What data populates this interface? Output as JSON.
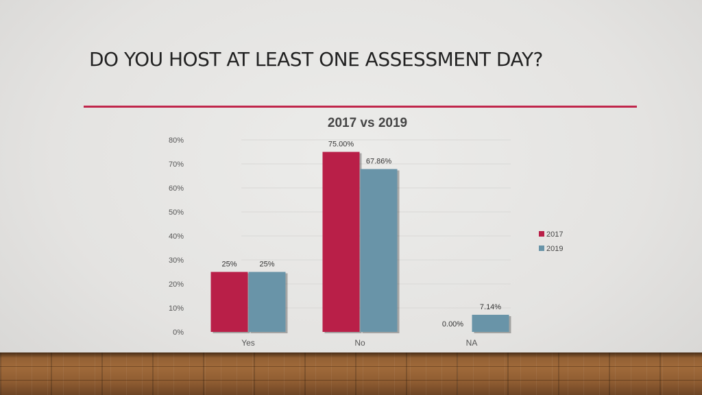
{
  "slide": {
    "title": "DO YOU HOST AT LEAST ONE ASSESSMENT DAY?"
  },
  "colors": {
    "accent": "#c0264b",
    "series_2017": "#b91f48",
    "series_2019": "#6994a8"
  },
  "chart_data": {
    "type": "bar",
    "title": "2017 vs 2019",
    "xlabel": "",
    "ylabel": "",
    "categories": [
      "Yes",
      "No",
      "NA"
    ],
    "series": [
      {
        "name": "2017",
        "values": [
          25,
          75.0,
          0.0
        ],
        "labels": [
          "25%",
          "75.00%",
          "0.00%"
        ]
      },
      {
        "name": "2019",
        "values": [
          25,
          67.86,
          7.14
        ],
        "labels": [
          "25%",
          "67.86%",
          "7.14%"
        ]
      }
    ],
    "ylim": [
      0,
      80
    ],
    "yticks": [
      "0%",
      "10%",
      "20%",
      "30%",
      "40%",
      "50%",
      "60%",
      "70%",
      "80%"
    ],
    "grid": true,
    "legend": "right"
  }
}
